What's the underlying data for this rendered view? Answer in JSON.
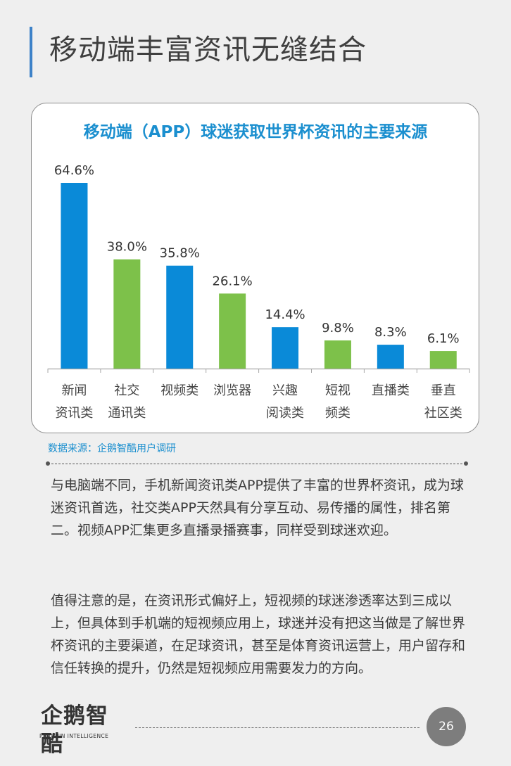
{
  "page": {
    "title": "移动端丰富资讯无缝结合",
    "source": "数据来源：企鹅智酷用户调研",
    "paragraphs": [
      "与电脑端不同，手机新闻资讯类APP提供了丰富的世界杯资讯，成为球迷资讯首选，社交类APP天然具有分享互动、易传播的属性，排名第二。视频APP汇集更多直播录播赛事，同样受到球迷欢迎。",
      "值得注意的是，在资讯形式偏好上，短视频的球迷渗透率达到三成以上，但具体到手机端的短视频应用上，球迷并没有把这当做是了解世界杯资讯的主要渠道，在足球资讯，甚至是体育资讯运营上，用户留存和信任转换的提升，仍然是短视频应用需要发力的方向。"
    ],
    "logo": {
      "name": "企鹅智酷",
      "subtitle": "PENGUIN INTELLIGENCE"
    },
    "page_number": "26"
  },
  "colors": {
    "blue": "#0a8ad8",
    "green": "#7dc14a",
    "title_blue": "#1b8fcf"
  },
  "chart_data": {
    "type": "bar",
    "title": "移动端（APP）球迷获取世界杯资讯的主要来源",
    "categories": [
      [
        "新闻",
        "资讯类"
      ],
      [
        "社交",
        "通讯类"
      ],
      [
        "视频类"
      ],
      [
        "浏览器"
      ],
      [
        "兴趣",
        "阅读类"
      ],
      [
        "短视",
        "频类"
      ],
      [
        "直播类"
      ],
      [
        "垂直",
        "社区类"
      ]
    ],
    "values": [
      64.6,
      38.0,
      35.8,
      26.1,
      14.4,
      9.8,
      8.3,
      6.1
    ],
    "value_labels": [
      "64.6%",
      "38.0%",
      "35.8%",
      "26.1%",
      "14.4%",
      "9.8%",
      "8.3%",
      "6.1%"
    ],
    "bar_colors": [
      "blue",
      "green",
      "blue",
      "green",
      "blue",
      "green",
      "blue",
      "green"
    ],
    "unit": "%",
    "ylim": [
      0,
      100
    ],
    "grid": false
  }
}
